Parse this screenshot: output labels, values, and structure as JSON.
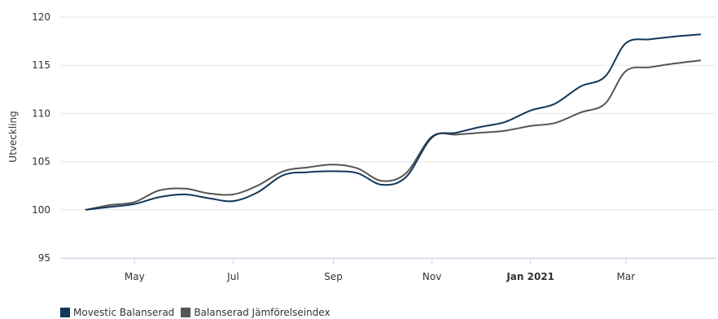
{
  "chart_data": {
    "type": "line",
    "title": "",
    "xlabel": "",
    "ylabel": "Utveckling",
    "ylim": [
      95,
      120
    ],
    "yticks": [
      "95",
      "100",
      "105",
      "110",
      "115",
      "120"
    ],
    "xticks": [
      {
        "label": "May",
        "date": "2020-05-01",
        "bold": false
      },
      {
        "label": "Jul",
        "date": "2020-07-01",
        "bold": false
      },
      {
        "label": "Sep",
        "date": "2020-09-01",
        "bold": false
      },
      {
        "label": "Nov",
        "date": "2020-11-01",
        "bold": false
      },
      {
        "label": "Jan 2021",
        "date": "2021-01-01",
        "bold": true
      },
      {
        "label": "Mar",
        "date": "2021-03-01",
        "bold": false
      }
    ],
    "xlim": [
      "2020-03-16",
      "2021-04-26"
    ],
    "grid": true,
    "legend_position": "bottom-left",
    "series": [
      {
        "name": "Movestic Balanserad",
        "color": "#12375a",
        "points": [
          [
            "2020-04-01",
            100.0
          ],
          [
            "2020-04-16",
            100.3
          ],
          [
            "2020-05-01",
            100.6
          ],
          [
            "2020-05-16",
            101.3
          ],
          [
            "2020-06-01",
            101.6
          ],
          [
            "2020-06-16",
            101.2
          ],
          [
            "2020-07-01",
            100.9
          ],
          [
            "2020-07-16",
            101.8
          ],
          [
            "2020-08-01",
            103.6
          ],
          [
            "2020-08-16",
            103.9
          ],
          [
            "2020-09-01",
            104.0
          ],
          [
            "2020-09-16",
            103.8
          ],
          [
            "2020-10-01",
            102.6
          ],
          [
            "2020-10-16",
            103.4
          ],
          [
            "2020-11-01",
            107.5
          ],
          [
            "2020-11-16",
            108.0
          ],
          [
            "2020-12-01",
            108.6
          ],
          [
            "2020-12-16",
            109.1
          ],
          [
            "2021-01-01",
            110.3
          ],
          [
            "2021-01-16",
            111.0
          ],
          [
            "2021-02-01",
            112.8
          ],
          [
            "2021-02-16",
            113.8
          ],
          [
            "2021-03-01",
            117.3
          ],
          [
            "2021-03-16",
            117.7
          ],
          [
            "2021-04-01",
            118.0
          ],
          [
            "2021-04-16",
            118.2
          ]
        ]
      },
      {
        "name": "Balanserad Jämförelseindex",
        "color": "#555555",
        "points": [
          [
            "2020-04-01",
            100.0
          ],
          [
            "2020-04-16",
            100.5
          ],
          [
            "2020-05-01",
            100.8
          ],
          [
            "2020-05-16",
            102.0
          ],
          [
            "2020-06-01",
            102.2
          ],
          [
            "2020-06-16",
            101.7
          ],
          [
            "2020-07-01",
            101.6
          ],
          [
            "2020-07-16",
            102.5
          ],
          [
            "2020-08-01",
            104.0
          ],
          [
            "2020-08-16",
            104.4
          ],
          [
            "2020-09-01",
            104.7
          ],
          [
            "2020-09-16",
            104.3
          ],
          [
            "2020-10-01",
            103.0
          ],
          [
            "2020-10-16",
            103.8
          ],
          [
            "2020-11-01",
            107.6
          ],
          [
            "2020-11-16",
            107.8
          ],
          [
            "2020-12-01",
            108.0
          ],
          [
            "2020-12-16",
            108.2
          ],
          [
            "2021-01-01",
            108.7
          ],
          [
            "2021-01-16",
            109.0
          ],
          [
            "2021-02-01",
            110.1
          ],
          [
            "2021-02-16",
            111.0
          ],
          [
            "2021-03-01",
            114.4
          ],
          [
            "2021-03-16",
            114.8
          ],
          [
            "2021-04-01",
            115.2
          ],
          [
            "2021-04-16",
            115.5
          ]
        ]
      }
    ]
  }
}
